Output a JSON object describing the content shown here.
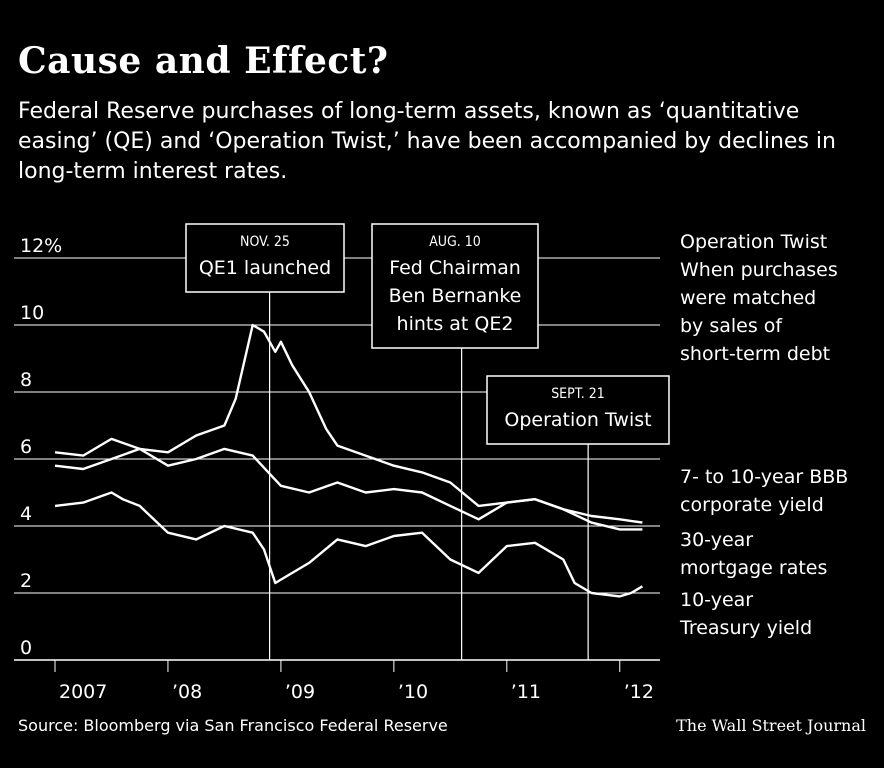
{
  "title": "Cause and Effect?",
  "subtitle": "Federal Reserve purchases of long-term assets, known as ‘quantitative easing’ (QE) and ‘Operation Twist,’ have been accompanied by declines in long-term interest rates.",
  "source": "Source: Bloomberg via San Francisco Federal Reserve",
  "credit": "The Wall Street Journal",
  "colors": {
    "background": "#000000",
    "foreground": "#ffffff"
  },
  "chart_data": {
    "type": "line",
    "ylim": [
      0,
      12
    ],
    "y_ticks": [
      {
        "value": 12,
        "label": "12%"
      },
      {
        "value": 10,
        "label": "10"
      },
      {
        "value": 8,
        "label": "8"
      },
      {
        "value": 6,
        "label": "6"
      },
      {
        "value": 4,
        "label": "4"
      },
      {
        "value": 2,
        "label": "2"
      },
      {
        "value": 0,
        "label": "0"
      }
    ],
    "xlim": [
      2007.0,
      2012.25
    ],
    "x_ticks": [
      {
        "value": 2007,
        "label": "2007"
      },
      {
        "value": 2008,
        "label": "’08"
      },
      {
        "value": 2009,
        "label": "’09"
      },
      {
        "value": 2010,
        "label": "’10"
      },
      {
        "value": 2011,
        "label": "’11"
      },
      {
        "value": 2012,
        "label": "’12"
      }
    ],
    "series": [
      {
        "name": "7- to 10-year BBB corporate yield",
        "x": [
          2007.0,
          2007.25,
          2007.5,
          2007.75,
          2008.0,
          2008.25,
          2008.5,
          2008.6,
          2008.75,
          2008.85,
          2008.95,
          2009.0,
          2009.1,
          2009.25,
          2009.4,
          2009.5,
          2009.75,
          2010.0,
          2010.25,
          2010.5,
          2010.75,
          2011.0,
          2011.25,
          2011.5,
          2011.75,
          2012.0,
          2012.2
        ],
        "y": [
          5.8,
          5.7,
          6.0,
          6.3,
          6.2,
          6.7,
          7.0,
          7.8,
          10.0,
          9.8,
          9.2,
          9.5,
          8.8,
          8.0,
          6.9,
          6.4,
          6.1,
          5.8,
          5.6,
          5.3,
          4.6,
          4.7,
          4.8,
          4.5,
          4.3,
          4.2,
          4.1
        ]
      },
      {
        "name": "30-year mortgage rates",
        "x": [
          2007.0,
          2007.25,
          2007.5,
          2007.75,
          2008.0,
          2008.25,
          2008.5,
          2008.75,
          2009.0,
          2009.25,
          2009.5,
          2009.75,
          2010.0,
          2010.25,
          2010.5,
          2010.75,
          2011.0,
          2011.25,
          2011.5,
          2011.75,
          2012.0,
          2012.2
        ],
        "y": [
          6.2,
          6.1,
          6.6,
          6.3,
          5.8,
          6.0,
          6.3,
          6.1,
          5.2,
          5.0,
          5.3,
          5.0,
          5.1,
          5.0,
          4.6,
          4.2,
          4.7,
          4.8,
          4.5,
          4.1,
          3.9,
          3.9
        ]
      },
      {
        "name": "10-year Treasury yield",
        "x": [
          2007.0,
          2007.25,
          2007.5,
          2007.6,
          2007.75,
          2008.0,
          2008.25,
          2008.5,
          2008.75,
          2008.85,
          2008.95,
          2009.0,
          2009.25,
          2009.5,
          2009.75,
          2010.0,
          2010.25,
          2010.5,
          2010.75,
          2011.0,
          2011.25,
          2011.5,
          2011.6,
          2011.75,
          2012.0,
          2012.1,
          2012.2
        ],
        "y": [
          4.6,
          4.7,
          5.0,
          4.8,
          4.6,
          3.8,
          3.6,
          4.0,
          3.8,
          3.3,
          2.3,
          2.4,
          2.9,
          3.6,
          3.4,
          3.7,
          3.8,
          3.0,
          2.6,
          3.4,
          3.5,
          3.0,
          2.3,
          2.0,
          1.9,
          2.0,
          2.2
        ]
      }
    ],
    "events": [
      {
        "x": 2008.9,
        "date": "NOV. 25",
        "label": "QE1 launched"
      },
      {
        "x": 2010.6,
        "date": "AUG. 10",
        "label": "Fed Chairman\nBen Bernanke\nhints at QE2"
      },
      {
        "x": 2011.72,
        "date": "SEPT. 21",
        "label": "Operation Twist"
      }
    ],
    "legend": [
      {
        "series": "Operation Twist",
        "text": "Operation Twist\nWhen purchases\nwere matched\nby sales of\nshort-term debt"
      },
      {
        "series": "7- to 10-year BBB corporate yield",
        "text": "7- to 10-year BBB\ncorporate yield"
      },
      {
        "series": "30-year mortgage rates",
        "text": "30-year\nmortgage rates"
      },
      {
        "series": "10-year Treasury yield",
        "text": "10-year\nTreasury yield"
      }
    ]
  }
}
